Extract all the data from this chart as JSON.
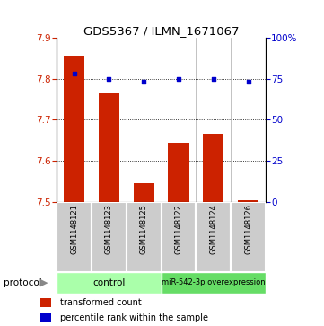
{
  "title": "GDS5367 / ILMN_1671067",
  "samples": [
    "GSM1148121",
    "GSM1148123",
    "GSM1148125",
    "GSM1148122",
    "GSM1148124",
    "GSM1148126"
  ],
  "bar_values": [
    7.855,
    7.765,
    7.545,
    7.645,
    7.665,
    7.505
  ],
  "percentile_values": [
    78,
    75,
    73,
    75,
    75,
    73
  ],
  "ylim_left": [
    7.5,
    7.9
  ],
  "ylim_right": [
    0,
    100
  ],
  "yticks_left": [
    7.5,
    7.6,
    7.7,
    7.8,
    7.9
  ],
  "yticks_right": [
    0,
    25,
    50,
    75,
    100
  ],
  "bar_color": "#cc2200",
  "dot_color": "#0000cc",
  "grid_lines": [
    7.6,
    7.7,
    7.8
  ],
  "protocol_labels": [
    "control",
    "miR-542-3p overexpression"
  ],
  "protocol_colors": [
    "#aaffaa",
    "#66dd66"
  ],
  "legend_items": [
    {
      "label": "transformed count",
      "color": "#cc2200"
    },
    {
      "label": "percentile rank within the sample",
      "color": "#0000cc"
    }
  ],
  "bar_width": 0.6,
  "figsize": [
    3.61,
    3.63
  ],
  "dpi": 100
}
